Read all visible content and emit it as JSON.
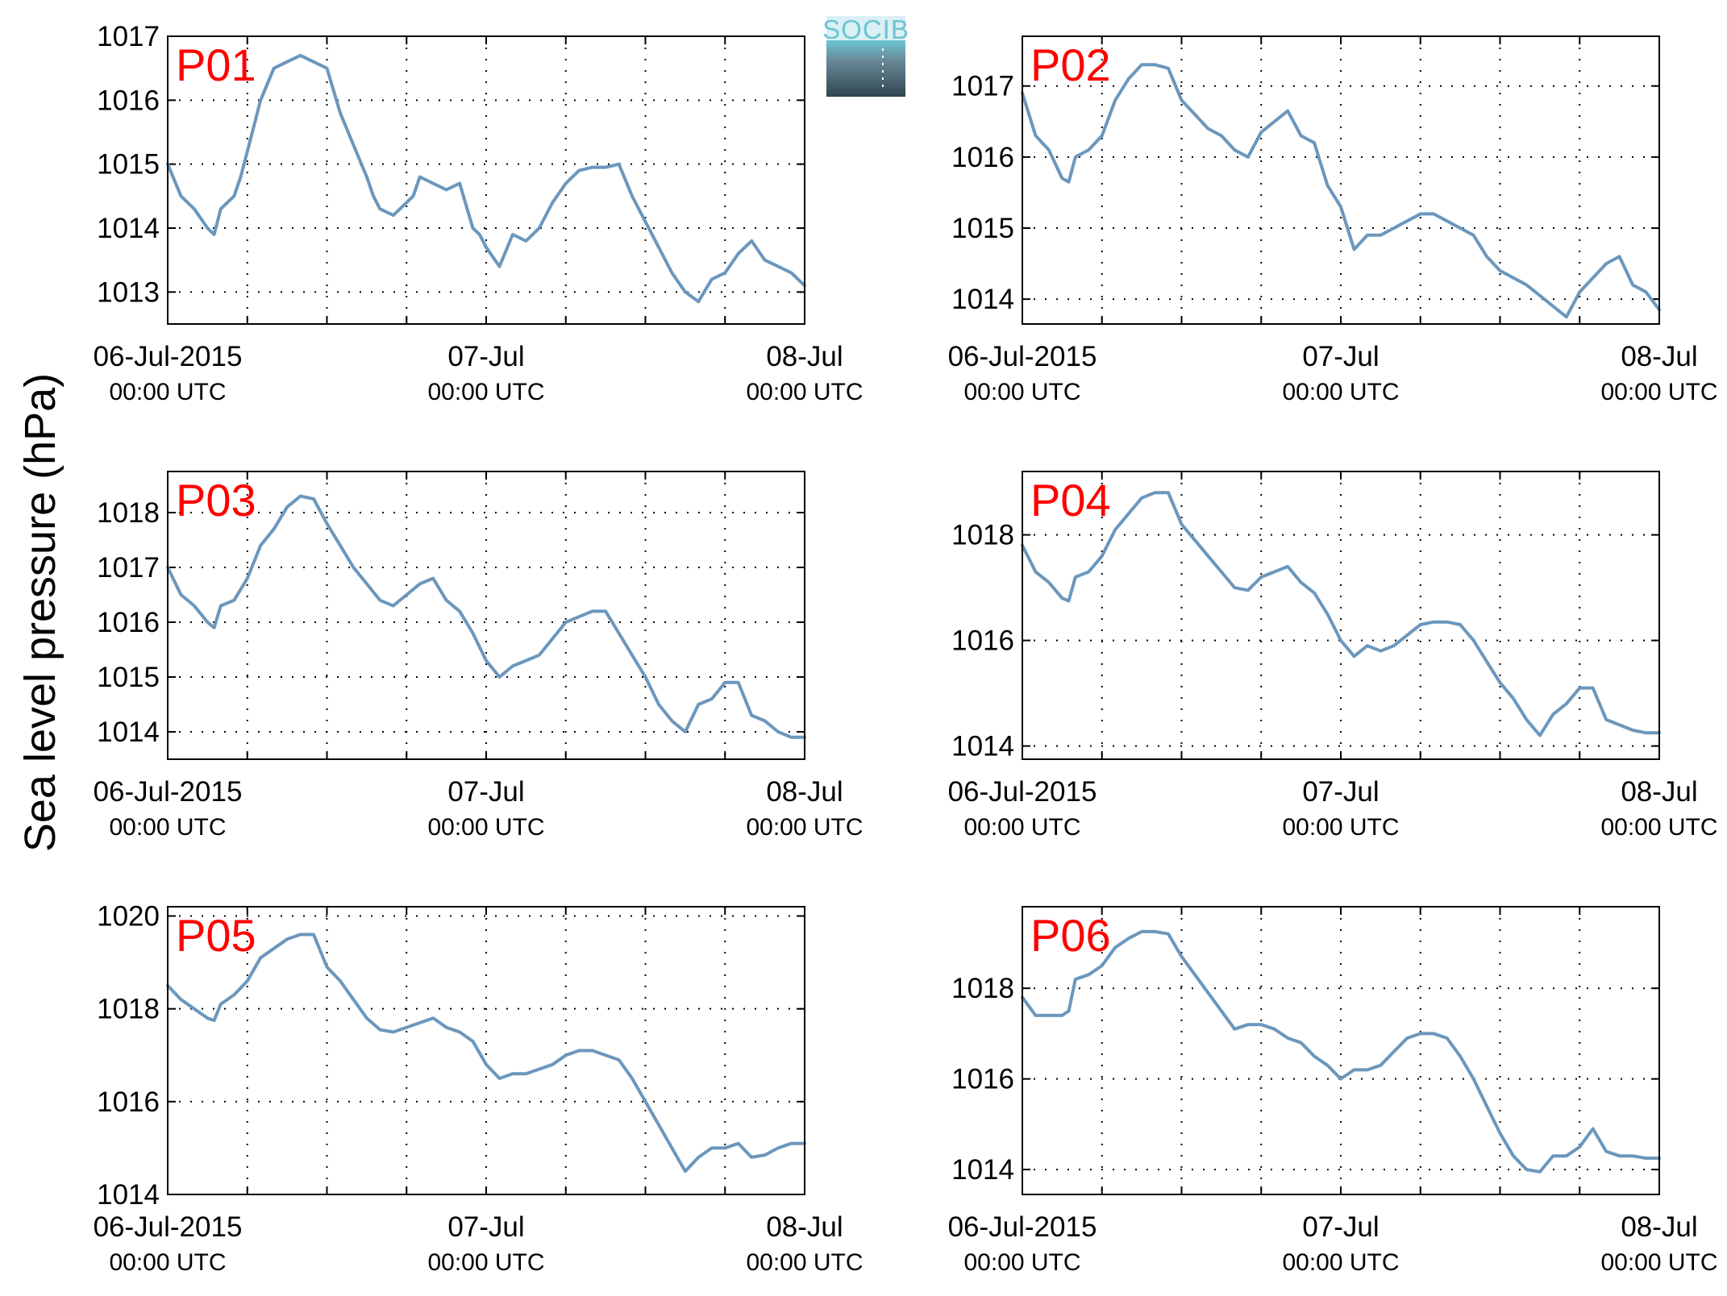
{
  "figure": {
    "ylabel": "Sea level pressure (hPa)",
    "logo_text": "SOCIB",
    "colors": {
      "line": "#6b97bd",
      "label": "#ff0000",
      "grid": "#000000",
      "logo_top": "#6cc4d3",
      "logo_bottom": "#2f4650"
    }
  },
  "chart_data": [
    {
      "type": "line",
      "name": "P01",
      "x_ticks": [
        {
          "main": "06-Jul-2015",
          "sub": "00:00 UTC"
        },
        {
          "main": "07-Jul",
          "sub": "00:00 UTC"
        },
        {
          "main": "08-Jul",
          "sub": "00:00 UTC"
        }
      ],
      "x_range_hours": [
        0,
        48
      ],
      "grid": true,
      "ylim": [
        1012.5,
        1017
      ],
      "yticks": [
        1013,
        1014,
        1015,
        1016,
        1017
      ],
      "series": [
        {
          "x": [
            0,
            1,
            2,
            3,
            3.5,
            4,
            5,
            5.5,
            6,
            7,
            8,
            9,
            10,
            11,
            12,
            13,
            14,
            15,
            15.5,
            16,
            17,
            18,
            18.5,
            19,
            20,
            21,
            22,
            23,
            23.5,
            24,
            25,
            26,
            27,
            27.5,
            28,
            29,
            30,
            31,
            32,
            33,
            34,
            35,
            36,
            37,
            38,
            39,
            40,
            41,
            42,
            43,
            44,
            45,
            46,
            47,
            48
          ],
          "y": [
            1015.0,
            1014.5,
            1014.3,
            1014.0,
            1013.9,
            1014.3,
            1014.5,
            1014.8,
            1015.2,
            1016.0,
            1016.5,
            1016.6,
            1016.7,
            1016.6,
            1016.5,
            1015.8,
            1015.3,
            1014.8,
            1014.5,
            1014.3,
            1014.2,
            1014.4,
            1014.5,
            1014.8,
            1014.7,
            1014.6,
            1014.7,
            1014.0,
            1013.9,
            1013.7,
            1013.4,
            1013.9,
            1013.8,
            1013.9,
            1014.0,
            1014.4,
            1014.7,
            1014.9,
            1014.95,
            1014.95,
            1015.0,
            1014.5,
            1014.1,
            1013.7,
            1013.3,
            1013.0,
            1012.85,
            1013.2,
            1013.3,
            1013.6,
            1013.8,
            1013.5,
            1013.4,
            1013.3,
            1013.1
          ]
        }
      ]
    },
    {
      "type": "line",
      "name": "P02",
      "x_ticks": [
        {
          "main": "06-Jul-2015",
          "sub": "00:00 UTC"
        },
        {
          "main": "07-Jul",
          "sub": "00:00 UTC"
        },
        {
          "main": "08-Jul",
          "sub": "00:00 UTC"
        }
      ],
      "x_range_hours": [
        0,
        48
      ],
      "grid": true,
      "ylim": [
        1013.65,
        1017.7
      ],
      "yticks": [
        1014,
        1015,
        1016,
        1017
      ],
      "series": [
        {
          "x": [
            0,
            1,
            2,
            3,
            3.5,
            4,
            5,
            6,
            7,
            8,
            9,
            10,
            11,
            12,
            13,
            14,
            15,
            16,
            17,
            18,
            19,
            20,
            21,
            22,
            23,
            24,
            25,
            26,
            27,
            28,
            29,
            30,
            31,
            32,
            33,
            34,
            35,
            36,
            37,
            38,
            39,
            40,
            41,
            42,
            43,
            44,
            45,
            46,
            47,
            48
          ],
          "y": [
            1016.9,
            1016.3,
            1016.1,
            1015.7,
            1015.65,
            1016.0,
            1016.1,
            1016.3,
            1016.8,
            1017.1,
            1017.3,
            1017.3,
            1017.25,
            1016.8,
            1016.6,
            1016.4,
            1016.3,
            1016.1,
            1016.0,
            1016.35,
            1016.5,
            1016.65,
            1016.3,
            1016.2,
            1015.6,
            1015.3,
            1014.7,
            1014.9,
            1014.9,
            1015.0,
            1015.1,
            1015.2,
            1015.2,
            1015.1,
            1015.0,
            1014.9,
            1014.6,
            1014.4,
            1014.3,
            1014.2,
            1014.05,
            1013.9,
            1013.75,
            1014.1,
            1014.3,
            1014.5,
            1014.6,
            1014.2,
            1014.1,
            1013.85
          ]
        }
      ]
    },
    {
      "type": "line",
      "name": "P03",
      "x_ticks": [
        {
          "main": "06-Jul-2015",
          "sub": "00:00 UTC"
        },
        {
          "main": "07-Jul",
          "sub": "00:00 UTC"
        },
        {
          "main": "08-Jul",
          "sub": "00:00 UTC"
        }
      ],
      "x_range_hours": [
        0,
        48
      ],
      "grid": true,
      "ylim": [
        1013.5,
        1018.75
      ],
      "yticks": [
        1014,
        1015,
        1016,
        1017,
        1018
      ],
      "series": [
        {
          "x": [
            0,
            1,
            2,
            3,
            3.5,
            4,
            5,
            6,
            7,
            8,
            9,
            10,
            11,
            12,
            13,
            14,
            15,
            16,
            17,
            18,
            19,
            20,
            21,
            22,
            23,
            24,
            25,
            26,
            27,
            28,
            29,
            30,
            31,
            32,
            33,
            34,
            35,
            36,
            37,
            38,
            39,
            40,
            41,
            42,
            43,
            44,
            45,
            46,
            47,
            48
          ],
          "y": [
            1017.0,
            1016.5,
            1016.3,
            1016.0,
            1015.9,
            1016.3,
            1016.4,
            1016.8,
            1017.4,
            1017.7,
            1018.1,
            1018.3,
            1018.25,
            1017.8,
            1017.4,
            1017.0,
            1016.7,
            1016.4,
            1016.3,
            1016.5,
            1016.7,
            1016.8,
            1016.4,
            1016.2,
            1015.8,
            1015.3,
            1015.0,
            1015.2,
            1015.3,
            1015.4,
            1015.7,
            1016.0,
            1016.1,
            1016.2,
            1016.2,
            1015.8,
            1015.4,
            1015.0,
            1014.5,
            1014.2,
            1014.0,
            1014.5,
            1014.6,
            1014.9,
            1014.9,
            1014.3,
            1014.2,
            1014.0,
            1013.9,
            1013.9
          ]
        }
      ]
    },
    {
      "type": "line",
      "name": "P04",
      "x_ticks": [
        {
          "main": "06-Jul-2015",
          "sub": "00:00 UTC"
        },
        {
          "main": "07-Jul",
          "sub": "00:00 UTC"
        },
        {
          "main": "08-Jul",
          "sub": "00:00 UTC"
        }
      ],
      "x_range_hours": [
        0,
        48
      ],
      "grid": true,
      "ylim": [
        1013.75,
        1019.2
      ],
      "yticks": [
        1014,
        1016,
        1018
      ],
      "series": [
        {
          "x": [
            0,
            1,
            2,
            3,
            3.5,
            4,
            5,
            6,
            7,
            8,
            9,
            10,
            11,
            12,
            13,
            14,
            15,
            16,
            17,
            18,
            19,
            20,
            21,
            22,
            23,
            24,
            25,
            26,
            27,
            28,
            29,
            30,
            31,
            32,
            33,
            34,
            35,
            36,
            37,
            38,
            39,
            40,
            41,
            42,
            43,
            44,
            45,
            46,
            47,
            48
          ],
          "y": [
            1017.8,
            1017.3,
            1017.1,
            1016.8,
            1016.75,
            1017.2,
            1017.3,
            1017.6,
            1018.1,
            1018.4,
            1018.7,
            1018.8,
            1018.8,
            1018.2,
            1017.9,
            1017.6,
            1017.3,
            1017.0,
            1016.95,
            1017.2,
            1017.3,
            1017.4,
            1017.1,
            1016.9,
            1016.5,
            1016.0,
            1015.7,
            1015.9,
            1015.8,
            1015.9,
            1016.1,
            1016.3,
            1016.35,
            1016.35,
            1016.3,
            1016.0,
            1015.6,
            1015.2,
            1014.9,
            1014.5,
            1014.2,
            1014.6,
            1014.8,
            1015.1,
            1015.1,
            1014.5,
            1014.4,
            1014.3,
            1014.25,
            1014.25
          ]
        }
      ]
    },
    {
      "type": "line",
      "name": "P05",
      "x_ticks": [
        {
          "main": "06-Jul-2015",
          "sub": "00:00 UTC"
        },
        {
          "main": "07-Jul",
          "sub": "00:00 UTC"
        },
        {
          "main": "08-Jul",
          "sub": "00:00 UTC"
        }
      ],
      "x_range_hours": [
        0,
        48
      ],
      "grid": true,
      "ylim": [
        1014,
        1020.2
      ],
      "yticks": [
        1014,
        1016,
        1018,
        1020
      ],
      "series": [
        {
          "x": [
            0,
            1,
            2,
            3,
            3.5,
            4,
            5,
            6,
            7,
            8,
            9,
            10,
            11,
            12,
            13,
            14,
            15,
            16,
            17,
            18,
            19,
            20,
            21,
            22,
            23,
            24,
            25,
            26,
            27,
            28,
            29,
            30,
            31,
            32,
            33,
            34,
            35,
            36,
            37,
            38,
            39,
            40,
            41,
            42,
            43,
            44,
            45,
            46,
            47,
            48
          ],
          "y": [
            1018.5,
            1018.2,
            1018.0,
            1017.8,
            1017.75,
            1018.1,
            1018.3,
            1018.6,
            1019.1,
            1019.3,
            1019.5,
            1019.6,
            1019.6,
            1018.9,
            1018.6,
            1018.2,
            1017.8,
            1017.55,
            1017.5,
            1017.6,
            1017.7,
            1017.8,
            1017.6,
            1017.5,
            1017.3,
            1016.8,
            1016.5,
            1016.6,
            1016.6,
            1016.7,
            1016.8,
            1017.0,
            1017.1,
            1017.1,
            1017.0,
            1016.9,
            1016.5,
            1016.0,
            1015.5,
            1015.0,
            1014.5,
            1014.8,
            1015.0,
            1015.0,
            1015.1,
            1014.8,
            1014.85,
            1015.0,
            1015.1,
            1015.1
          ]
        }
      ]
    },
    {
      "type": "line",
      "name": "P06",
      "x_ticks": [
        {
          "main": "06-Jul-2015",
          "sub": "00:00 UTC"
        },
        {
          "main": "07-Jul",
          "sub": "00:00 UTC"
        },
        {
          "main": "08-Jul",
          "sub": "00:00 UTC"
        }
      ],
      "x_range_hours": [
        0,
        48
      ],
      "grid": true,
      "ylim": [
        1013.45,
        1019.8
      ],
      "yticks": [
        1014,
        1016,
        1018
      ],
      "series": [
        {
          "x": [
            0,
            1,
            2,
            3,
            3.5,
            4,
            5,
            6,
            7,
            8,
            9,
            10,
            11,
            12,
            13,
            14,
            15,
            16,
            17,
            18,
            19,
            20,
            21,
            22,
            23,
            24,
            25,
            26,
            27,
            28,
            29,
            30,
            31,
            32,
            33,
            34,
            35,
            36,
            37,
            38,
            39,
            40,
            41,
            42,
            43,
            44,
            45,
            46,
            47,
            48
          ],
          "y": [
            1017.8,
            1017.4,
            1017.4,
            1017.4,
            1017.5,
            1018.2,
            1018.3,
            1018.5,
            1018.9,
            1019.1,
            1019.25,
            1019.25,
            1019.2,
            1018.7,
            1018.3,
            1017.9,
            1017.5,
            1017.1,
            1017.2,
            1017.2,
            1017.1,
            1016.9,
            1016.8,
            1016.5,
            1016.3,
            1016.0,
            1016.2,
            1016.2,
            1016.3,
            1016.6,
            1016.9,
            1017.0,
            1017.0,
            1016.9,
            1016.5,
            1016.0,
            1015.4,
            1014.8,
            1014.3,
            1014.0,
            1013.95,
            1014.3,
            1014.3,
            1014.5,
            1014.9,
            1014.4,
            1014.3,
            1014.3,
            1014.25,
            1014.25
          ]
        }
      ]
    }
  ]
}
